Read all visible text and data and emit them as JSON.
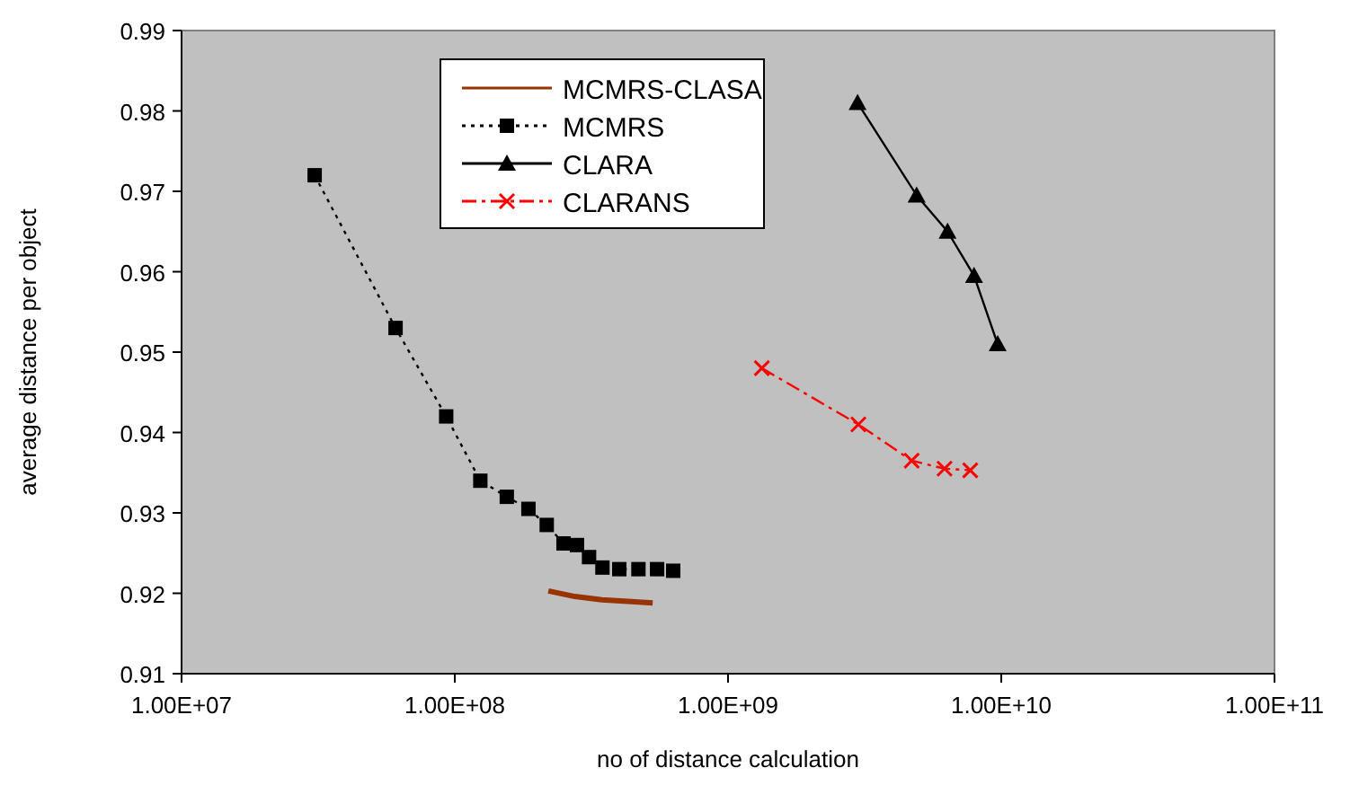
{
  "chart_data": {
    "type": "line",
    "xlabel": "no of distance calculation",
    "ylabel": "average distance per object",
    "log": "x",
    "xlim": [
      10000000.0,
      100000000000.0
    ],
    "xticks": [
      {
        "value": 10000000.0,
        "label": "1.00E+07"
      },
      {
        "value": 100000000.0,
        "label": "1.00E+08"
      },
      {
        "value": 1000000000.0,
        "label": "1.00E+09"
      },
      {
        "value": 10000000000.0,
        "label": "1.00E+10"
      },
      {
        "value": 100000000000.0,
        "label": "1.00E+11"
      }
    ],
    "ylim": [
      0.91,
      0.99
    ],
    "yticks": [
      0.91,
      0.92,
      0.93,
      0.94,
      0.95,
      0.96,
      0.97,
      0.98,
      0.99
    ],
    "grid": false,
    "legend": "top left",
    "series": [
      {
        "name": "MCMRS-CLASA",
        "color": "#993300",
        "marker": "none",
        "line_style": "solid",
        "x": [
          220000000.0,
          275000000.0,
          345000000.0,
          430000000.0,
          530000000.0
        ],
        "values": [
          0.9203,
          0.9196,
          0.9192,
          0.919,
          0.9188
        ]
      },
      {
        "name": "MCMRS",
        "color": "#000000",
        "marker": "square",
        "line_style": "dotted",
        "x": [
          30700000.0,
          60700000.0,
          93000000.0,
          124000000.0,
          155000000.0,
          186000000.0,
          217000000.0,
          250000000.0,
          280000000.0,
          310000000.0,
          347000000.0,
          400000000.0,
          470000000.0,
          550000000.0,
          630000000.0
        ],
        "values": [
          0.972,
          0.953,
          0.942,
          0.934,
          0.932,
          0.9305,
          0.9285,
          0.9262,
          0.926,
          0.9245,
          0.9232,
          0.923,
          0.923,
          0.923,
          0.9228
        ]
      },
      {
        "name": "CLARA",
        "color": "#000000",
        "marker": "triangle",
        "line_style": "solid",
        "x": [
          2980000000.0,
          4900000000.0,
          6360000000.0,
          7950000000.0,
          9700000000.0
        ],
        "values": [
          0.981,
          0.9695,
          0.965,
          0.9595,
          0.951
        ]
      },
      {
        "name": "CLARANS",
        "color": "#ff0000",
        "marker": "cross",
        "line_style": "dashed",
        "x": [
          1330000000.0,
          3000000000.0,
          4700000000.0,
          6200000000.0,
          7700000000.0
        ],
        "values": [
          0.948,
          0.941,
          0.9365,
          0.9355,
          0.9353
        ]
      }
    ]
  }
}
